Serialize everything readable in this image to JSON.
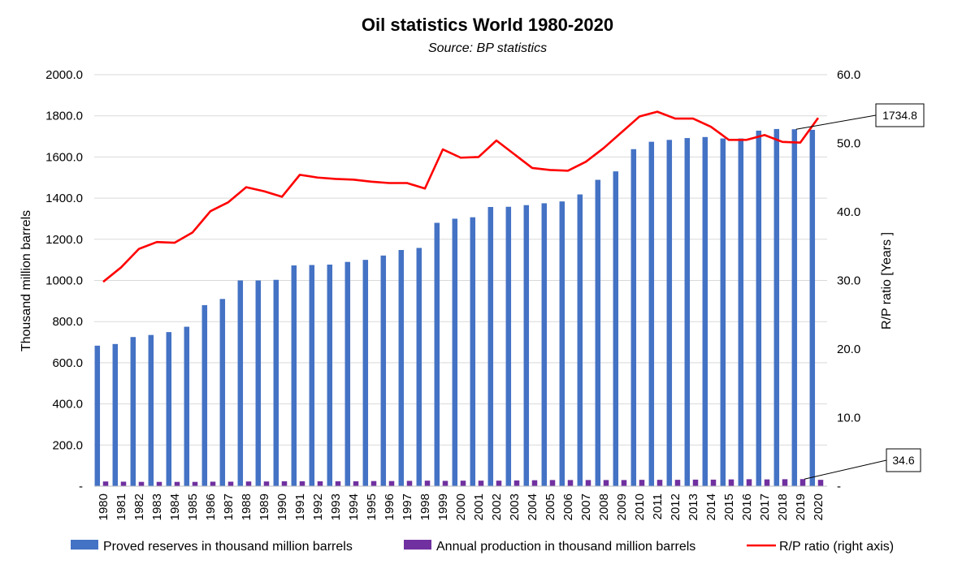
{
  "chart_data": {
    "type": "bar",
    "title": "Oil statistics World 1980-2020",
    "subtitle": "Source: BP statistics",
    "ylabel": "Thousand million barrels",
    "y2label": "R/P ratio [Years ]",
    "ylim": [
      0,
      2000
    ],
    "y2lim": [
      0,
      60
    ],
    "y_ticks": [
      "-",
      "200.0",
      "400.0",
      "600.0",
      "800.0",
      "1000.0",
      "1200.0",
      "1400.0",
      "1600.0",
      "1800.0",
      "2000.0"
    ],
    "y2_ticks": [
      "-",
      "10.0",
      "20.0",
      "30.0",
      "40.0",
      "50.0",
      "60.0"
    ],
    "grid": true,
    "legend_position": "bottom",
    "categories": [
      "1980",
      "1981",
      "1982",
      "1983",
      "1984",
      "1985",
      "1986",
      "1987",
      "1988",
      "1989",
      "1990",
      "1991",
      "1992",
      "1993",
      "1994",
      "1995",
      "1996",
      "1997",
      "1998",
      "1999",
      "2000",
      "2001",
      "2002",
      "2003",
      "2004",
      "2005",
      "2006",
      "2007",
      "2008",
      "2009",
      "2010",
      "2011",
      "2012",
      "2013",
      "2014",
      "2015",
      "2016",
      "2017",
      "2018",
      "2019",
      "2020"
    ],
    "series": [
      {
        "name": "Proved reserves in thousand million barrels",
        "type": "bar",
        "axis": "left",
        "color": "#4472c4",
        "values": [
          683,
          691,
          725,
          735,
          749,
          775,
          880,
          910,
          1000,
          1000,
          1003,
          1073,
          1075,
          1077,
          1090,
          1100,
          1121,
          1148,
          1158,
          1280,
          1300,
          1307,
          1357,
          1358,
          1366,
          1375,
          1384,
          1418,
          1489,
          1530,
          1638,
          1674,
          1683,
          1692,
          1697,
          1690,
          1690,
          1728,
          1736,
          1734.8,
          1732
        ]
      },
      {
        "name": "Annual production in thousand million barrels",
        "type": "bar",
        "axis": "left",
        "color": "#7030a0",
        "values": [
          23,
          22,
          21,
          21,
          21,
          21,
          22,
          22,
          23,
          23,
          24,
          24,
          24,
          24,
          24,
          25,
          25,
          26,
          27,
          26,
          27,
          27,
          27,
          28,
          29,
          30,
          30,
          30,
          30,
          30,
          31,
          31,
          31,
          32,
          32,
          33,
          34,
          33,
          34,
          34.6,
          31
        ]
      },
      {
        "name": "R/P ratio (right axis)",
        "type": "line",
        "axis": "right",
        "color": "#ff0000",
        "values": [
          29.8,
          31.9,
          34.6,
          35.6,
          35.5,
          37.0,
          40.1,
          41.4,
          43.6,
          43.0,
          42.2,
          45.4,
          45.0,
          44.8,
          44.7,
          44.4,
          44.2,
          44.2,
          43.4,
          49.1,
          47.9,
          48.0,
          50.4,
          48.4,
          46.4,
          46.1,
          46.0,
          47.3,
          49.3,
          51.6,
          53.9,
          54.6,
          53.6,
          53.6,
          52.4,
          50.5,
          50.5,
          51.2,
          50.2,
          50.1,
          53.7
        ]
      }
    ],
    "callouts": [
      {
        "label": "1734.8",
        "series": 0,
        "index": 39
      },
      {
        "label": "34.6",
        "series": 1,
        "index": 39
      }
    ]
  }
}
